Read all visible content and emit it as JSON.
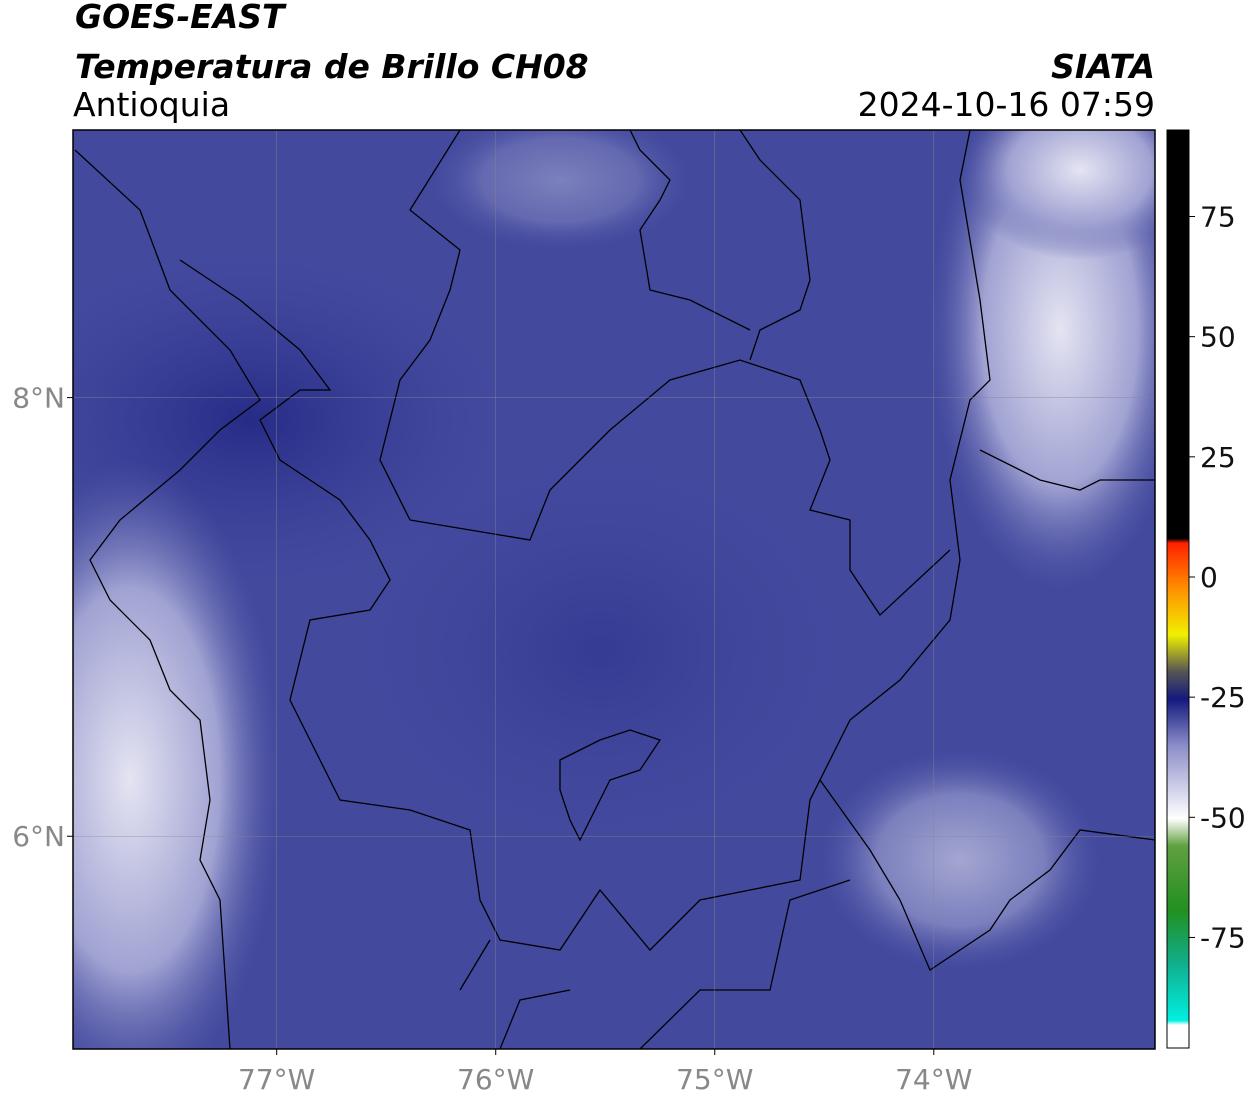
{
  "header": {
    "title": "GOES-EAST",
    "subtitle": "Temperatura de Brillo CH08",
    "region": "Antioquia",
    "source": "SIATA",
    "datetime": "2024-10-16 07:59"
  },
  "map": {
    "xlim": [
      -77.93,
      -72.99
    ],
    "ylim": [
      5.03,
      9.22
    ],
    "xticks": [
      {
        "value": -77,
        "label": "77°W"
      },
      {
        "value": -76,
        "label": "76°W"
      },
      {
        "value": -75,
        "label": "75°W"
      },
      {
        "value": -74,
        "label": "74°W"
      }
    ],
    "yticks": [
      {
        "value": 8,
        "label": "8°N"
      },
      {
        "value": 6,
        "label": "6°N"
      }
    ]
  },
  "colorbar": {
    "lim": [
      -98,
      93
    ],
    "ticks": [
      75,
      50,
      25,
      0,
      -25,
      -50,
      -75
    ]
  }
}
